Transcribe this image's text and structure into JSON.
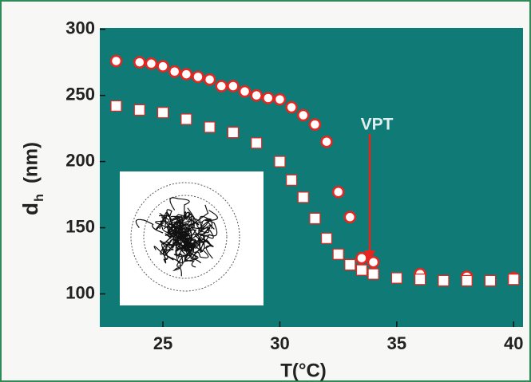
{
  "chart_data": {
    "type": "scatter",
    "xlabel": "T(°C)",
    "ylabel": "d",
    "ylabel_sub": "h",
    "ylabel_unit": "(nm)",
    "annotation": "VPT",
    "background": "#0f7a76",
    "xlim": [
      22.3,
      40.4
    ],
    "xticks": [
      25,
      30,
      35,
      40
    ],
    "ylim": [
      75,
      301
    ],
    "yticks": [
      100,
      150,
      200,
      250,
      300
    ],
    "series": [
      {
        "marker": "circle",
        "color": "#e8251f",
        "x": [
          23,
          24,
          24.5,
          25,
          25.5,
          26,
          26.5,
          27,
          27.5,
          28,
          28.5,
          29,
          29.5,
          30,
          30.5,
          31,
          31.5,
          32,
          32.5,
          33,
          33.5,
          34,
          36,
          38,
          40
        ],
        "values": [
          276,
          275,
          274,
          272,
          268,
          266,
          264,
          262,
          257,
          257,
          253,
          250,
          248,
          247,
          241,
          235,
          228,
          215,
          177,
          158,
          127,
          124,
          115,
          113,
          112
        ]
      },
      {
        "marker": "square",
        "color": "#e8251f",
        "x": [
          23,
          24,
          25,
          26,
          27,
          28,
          29,
          30,
          30.5,
          31,
          31.5,
          32,
          32.5,
          33,
          33.5,
          34,
          35,
          36,
          37,
          38,
          39,
          40
        ],
        "values": [
          242,
          239,
          237,
          232,
          226,
          222,
          214,
          200,
          186,
          173,
          157,
          142,
          130,
          122,
          118,
          115,
          112,
          111,
          110,
          110,
          110,
          111
        ]
      }
    ]
  }
}
